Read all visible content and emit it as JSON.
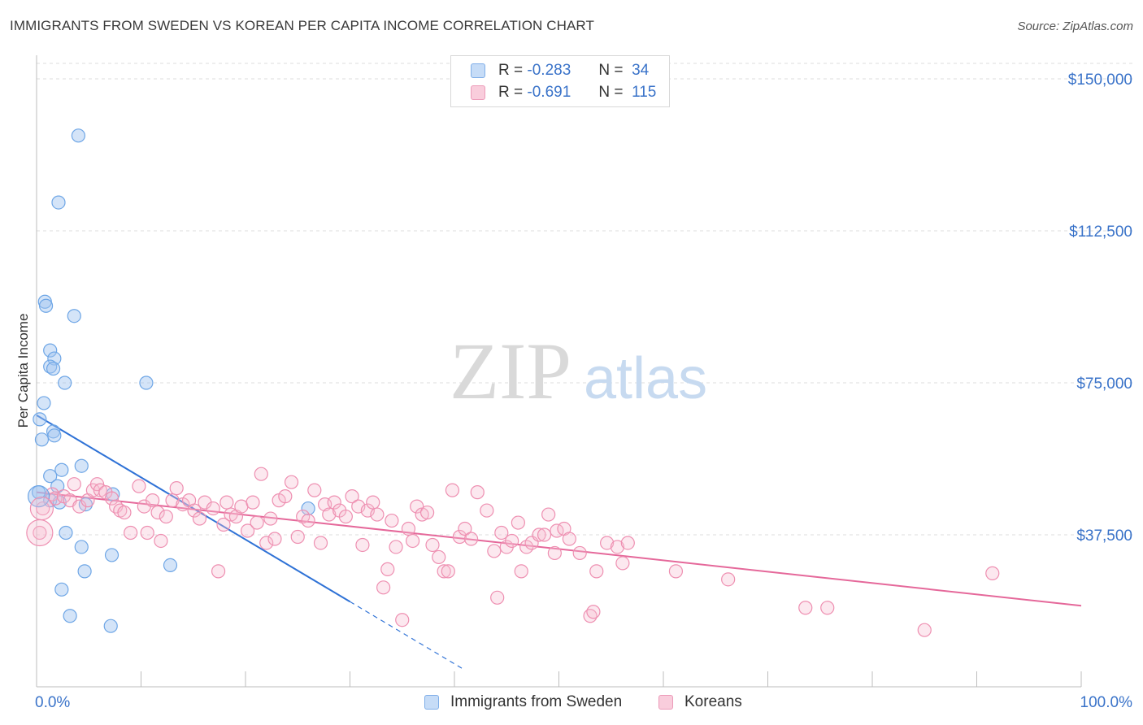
{
  "title": "IMMIGRANTS FROM SWEDEN VS KOREAN PER CAPITA INCOME CORRELATION CHART",
  "source": "Source: ZipAtlas.com",
  "watermark": {
    "zip": "ZIP",
    "atlas": "atlas"
  },
  "legend": {
    "rows": [
      {
        "r_label": "R =",
        "r_value": "-0.283",
        "n_label": "N =",
        "n_value": "34"
      },
      {
        "r_label": "R =",
        "r_value": "-0.691",
        "n_label": "N =",
        "n_value": "115"
      }
    ]
  },
  "bottom_legend": [
    "Immigrants from Sweden",
    "Koreans"
  ],
  "colors": {
    "blue": "#6ea6e6",
    "blue_line": "#2f72d6",
    "pink": "#ee8fb1",
    "pink_line": "#e5689a",
    "tick_label": "#3a73c9"
  },
  "chart_data": {
    "type": "scatter",
    "xlabel": "",
    "ylabel": "Per Capita Income",
    "xlim": [
      0,
      100
    ],
    "ylim": [
      0,
      150000
    ],
    "x_tick_labels": [
      "0.0%",
      "100.0%"
    ],
    "y_ticks": [
      37500,
      75000,
      112500,
      150000
    ],
    "y_tick_labels": [
      "$37,500",
      "$75,000",
      "$112,500",
      "$150,000"
    ],
    "grid": true,
    "series": [
      {
        "name": "Immigrants from Sweden",
        "r": -0.283,
        "n": 34,
        "trend": {
          "x0": 0,
          "y0": 67000,
          "x1": 30,
          "y1": 21000,
          "dash_to_x": 41
        },
        "points": [
          [
            4.0,
            136000
          ],
          [
            2.1,
            119500
          ],
          [
            0.8,
            95000
          ],
          [
            0.9,
            94000
          ],
          [
            3.6,
            91500
          ],
          [
            1.3,
            83000
          ],
          [
            1.7,
            81000
          ],
          [
            1.3,
            79000
          ],
          [
            1.6,
            78500
          ],
          [
            2.7,
            75000
          ],
          [
            10.5,
            75000
          ],
          [
            0.7,
            70000
          ],
          [
            0.3,
            66000
          ],
          [
            1.6,
            63000
          ],
          [
            1.7,
            62000
          ],
          [
            0.5,
            61000
          ],
          [
            4.3,
            54500
          ],
          [
            2.4,
            53500
          ],
          [
            1.3,
            52000
          ],
          [
            0.2,
            48000
          ],
          [
            2.0,
            49500
          ],
          [
            7.3,
            47500
          ],
          [
            1.3,
            46000
          ],
          [
            2.2,
            45500
          ],
          [
            4.7,
            45000
          ],
          [
            26.0,
            44000
          ],
          [
            2.8,
            38000
          ],
          [
            4.3,
            34500
          ],
          [
            7.2,
            32500
          ],
          [
            12.8,
            30000
          ],
          [
            4.6,
            28500
          ],
          [
            2.4,
            24000
          ],
          [
            3.2,
            17500
          ],
          [
            7.1,
            15000
          ]
        ]
      },
      {
        "name": "Koreans",
        "r": -0.691,
        "n": 115,
        "trend": {
          "x0": 0,
          "y0": 48000,
          "x1": 100,
          "y1": 20000
        },
        "points": [
          [
            0.6,
            44000
          ],
          [
            0.3,
            38000
          ],
          [
            1.5,
            47500
          ],
          [
            1.8,
            46500
          ],
          [
            2.6,
            47000
          ],
          [
            3.2,
            46000
          ],
          [
            3.6,
            50000
          ],
          [
            4.1,
            44500
          ],
          [
            4.9,
            46000
          ],
          [
            5.4,
            48500
          ],
          [
            5.8,
            50000
          ],
          [
            6.1,
            48500
          ],
          [
            6.6,
            48000
          ],
          [
            7.2,
            46500
          ],
          [
            7.6,
            44500
          ],
          [
            8.0,
            43500
          ],
          [
            8.4,
            43000
          ],
          [
            9.0,
            38000
          ],
          [
            9.8,
            49500
          ],
          [
            10.3,
            44500
          ],
          [
            10.6,
            38000
          ],
          [
            11.1,
            46000
          ],
          [
            11.6,
            43000
          ],
          [
            11.9,
            36000
          ],
          [
            12.4,
            42000
          ],
          [
            13.0,
            46000
          ],
          [
            13.4,
            49000
          ],
          [
            14.0,
            45000
          ],
          [
            14.6,
            46000
          ],
          [
            15.1,
            43500
          ],
          [
            15.6,
            41500
          ],
          [
            16.1,
            45500
          ],
          [
            16.9,
            44000
          ],
          [
            17.4,
            28500
          ],
          [
            17.9,
            40000
          ],
          [
            18.2,
            45500
          ],
          [
            18.6,
            42500
          ],
          [
            19.1,
            42000
          ],
          [
            19.6,
            44500
          ],
          [
            20.2,
            38500
          ],
          [
            20.7,
            45500
          ],
          [
            21.1,
            40500
          ],
          [
            21.5,
            52500
          ],
          [
            22.0,
            35500
          ],
          [
            22.4,
            41500
          ],
          [
            22.8,
            36500
          ],
          [
            23.2,
            46000
          ],
          [
            23.8,
            47000
          ],
          [
            24.4,
            50500
          ],
          [
            25.0,
            37000
          ],
          [
            25.5,
            42000
          ],
          [
            26.0,
            41000
          ],
          [
            26.6,
            48500
          ],
          [
            27.2,
            35500
          ],
          [
            27.6,
            45000
          ],
          [
            28.0,
            42500
          ],
          [
            28.5,
            45500
          ],
          [
            29.0,
            43500
          ],
          [
            29.6,
            42000
          ],
          [
            30.2,
            47000
          ],
          [
            30.8,
            44500
          ],
          [
            31.2,
            35000
          ],
          [
            31.7,
            43500
          ],
          [
            32.2,
            45500
          ],
          [
            32.6,
            42500
          ],
          [
            33.2,
            24500
          ],
          [
            33.6,
            29000
          ],
          [
            34.0,
            41000
          ],
          [
            34.4,
            34500
          ],
          [
            35.0,
            16500
          ],
          [
            35.6,
            39000
          ],
          [
            36.0,
            36000
          ],
          [
            36.4,
            44500
          ],
          [
            36.9,
            42500
          ],
          [
            37.4,
            43000
          ],
          [
            37.9,
            35000
          ],
          [
            38.5,
            32000
          ],
          [
            39.0,
            28500
          ],
          [
            39.4,
            28500
          ],
          [
            39.8,
            48500
          ],
          [
            40.5,
            37000
          ],
          [
            41.0,
            39000
          ],
          [
            41.6,
            36500
          ],
          [
            42.2,
            48000
          ],
          [
            43.1,
            43500
          ],
          [
            43.8,
            33500
          ],
          [
            44.1,
            22000
          ],
          [
            44.5,
            38000
          ],
          [
            45.0,
            34500
          ],
          [
            45.5,
            36000
          ],
          [
            46.1,
            40500
          ],
          [
            46.4,
            28500
          ],
          [
            46.9,
            34500
          ],
          [
            47.4,
            35500
          ],
          [
            48.1,
            37500
          ],
          [
            48.6,
            37500
          ],
          [
            49.0,
            42500
          ],
          [
            49.6,
            33000
          ],
          [
            49.8,
            38500
          ],
          [
            50.5,
            39000
          ],
          [
            51.0,
            36500
          ],
          [
            52.0,
            33000
          ],
          [
            53.0,
            17500
          ],
          [
            53.3,
            18500
          ],
          [
            53.6,
            28500
          ],
          [
            54.6,
            35500
          ],
          [
            55.6,
            34500
          ],
          [
            56.1,
            30500
          ],
          [
            56.6,
            35500
          ],
          [
            61.2,
            28500
          ],
          [
            66.2,
            26500
          ],
          [
            73.6,
            19500
          ],
          [
            75.7,
            19500
          ],
          [
            85.0,
            14000
          ],
          [
            91.5,
            28000
          ]
        ]
      }
    ]
  }
}
